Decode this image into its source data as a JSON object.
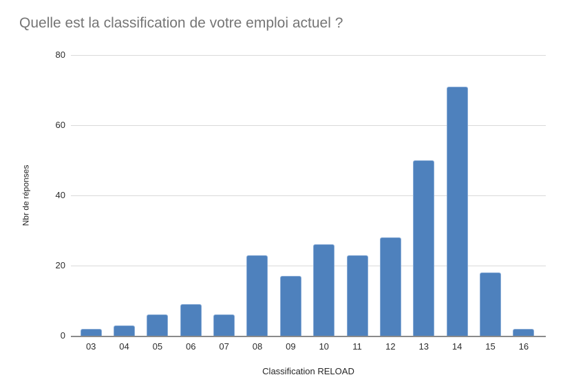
{
  "chart_data": {
    "type": "bar",
    "title": "Quelle est la classification de votre emploi actuel ?",
    "xlabel": "Classification RELOAD",
    "ylabel": "Nbr de réponses",
    "categories": [
      "03",
      "04",
      "05",
      "06",
      "07",
      "08",
      "09",
      "10",
      "11",
      "12",
      "13",
      "14",
      "15",
      "16"
    ],
    "values": [
      2,
      3,
      6,
      9,
      6,
      23,
      17,
      26,
      23,
      28,
      50,
      71,
      18,
      2
    ],
    "ylim": [
      0,
      80
    ],
    "yticks": [
      0,
      20,
      40,
      60,
      80
    ],
    "grid": true,
    "legend": "none",
    "colors": {
      "bar_fill": "#4e81bd",
      "bar_border": "#88abd6",
      "gridline": "#d9d9d9",
      "axis_line": "#8a8a8a",
      "title_text": "#757575",
      "tick_text": "#2b2b2b",
      "axis_title_text": "#262626",
      "background": "#ffffff"
    }
  }
}
